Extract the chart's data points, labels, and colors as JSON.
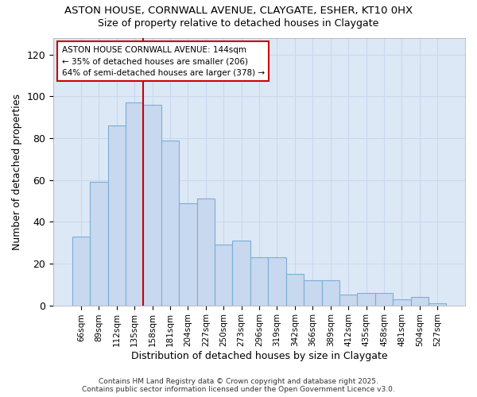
{
  "title1": "ASTON HOUSE, CORNWALL AVENUE, CLAYGATE, ESHER, KT10 0HX",
  "title2": "Size of property relative to detached houses in Claygate",
  "xlabel": "Distribution of detached houses by size in Claygate",
  "ylabel": "Number of detached properties",
  "categories": [
    "66sqm",
    "89sqm",
    "112sqm",
    "135sqm",
    "158sqm",
    "181sqm",
    "204sqm",
    "227sqm",
    "250sqm",
    "273sqm",
    "296sqm",
    "319sqm",
    "342sqm",
    "366sqm",
    "389sqm",
    "412sqm",
    "435sqm",
    "458sqm",
    "481sqm",
    "504sqm",
    "527sqm"
  ],
  "values": [
    33,
    59,
    86,
    97,
    96,
    79,
    49,
    51,
    29,
    31,
    23,
    23,
    15,
    12,
    12,
    5,
    6,
    6,
    3,
    4,
    1
  ],
  "bar_color": "#c8d8ef",
  "bar_edge_color": "#7bafd4",
  "vline_x": 3.5,
  "vline_color": "#cc0000",
  "annotation_text": "ASTON HOUSE CORNWALL AVENUE: 144sqm\n← 35% of detached houses are smaller (206)\n64% of semi-detached houses are larger (378) →",
  "annotation_box_color": "#ffffff",
  "annotation_box_edge": "#cc0000",
  "ylim": [
    0,
    128
  ],
  "yticks": [
    0,
    20,
    40,
    60,
    80,
    100,
    120
  ],
  "grid_color": "#c8d8ef",
  "plot_bg_color": "#dce8f5",
  "fig_bg_color": "#ffffff",
  "footer1": "Contains HM Land Registry data © Crown copyright and database right 2025.",
  "footer2": "Contains public sector information licensed under the Open Government Licence v3.0."
}
